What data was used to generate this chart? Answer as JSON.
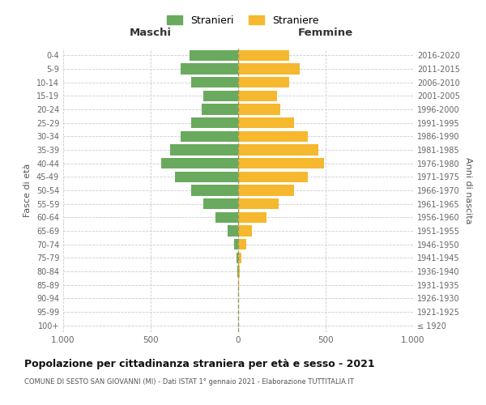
{
  "age_groups": [
    "100+",
    "95-99",
    "90-94",
    "85-89",
    "80-84",
    "75-79",
    "70-74",
    "65-69",
    "60-64",
    "55-59",
    "50-54",
    "45-49",
    "40-44",
    "35-39",
    "30-34",
    "25-29",
    "20-24",
    "15-19",
    "10-14",
    "5-9",
    "0-4"
  ],
  "birth_years": [
    "≤ 1920",
    "1921-1925",
    "1926-1930",
    "1931-1935",
    "1936-1940",
    "1941-1945",
    "1946-1950",
    "1951-1955",
    "1956-1960",
    "1961-1965",
    "1966-1970",
    "1971-1975",
    "1976-1980",
    "1981-1985",
    "1986-1990",
    "1991-1995",
    "1996-2000",
    "2001-2005",
    "2006-2010",
    "2011-2015",
    "2016-2020"
  ],
  "maschi": [
    0,
    0,
    0,
    2,
    5,
    10,
    25,
    60,
    130,
    200,
    270,
    360,
    440,
    390,
    330,
    270,
    210,
    200,
    270,
    330,
    280
  ],
  "femmine": [
    0,
    0,
    2,
    5,
    10,
    20,
    45,
    80,
    160,
    230,
    320,
    400,
    490,
    460,
    400,
    320,
    240,
    220,
    290,
    350,
    290
  ],
  "maschi_color": "#6aaa5e",
  "femmine_color": "#f5b82e",
  "background_color": "#ffffff",
  "grid_color": "#cccccc",
  "title": "Popolazione per cittadinanza straniera per età e sesso - 2021",
  "subtitle": "COMUNE DI SESTO SAN GIOVANNI (MI) - Dati ISTAT 1° gennaio 2021 - Elaborazione TUTTITALIA.IT",
  "xlabel_left": "Maschi",
  "xlabel_right": "Femmine",
  "ylabel_left": "Fasce di età",
  "ylabel_right": "Anni di nascita",
  "legend_maschi": "Stranieri",
  "legend_femmine": "Straniere",
  "xlim": 1000,
  "xtick_positions": [
    -1000,
    -500,
    0,
    500,
    1000
  ],
  "xtick_labels": [
    "1.000",
    "500",
    "0",
    "500",
    "1.000"
  ]
}
